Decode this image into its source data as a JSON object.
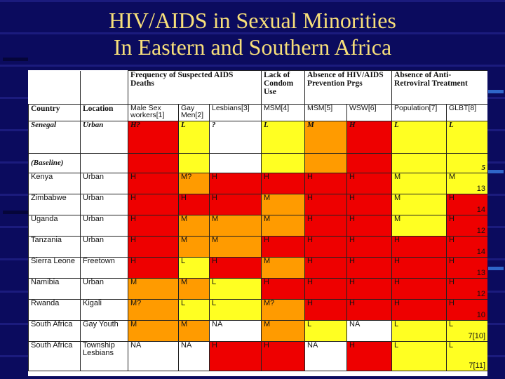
{
  "title": {
    "line1": "HIV/AIDS in Sexual Minorities",
    "line2": "In Eastern and Southern Africa"
  },
  "colors": {
    "background": "#0b0b5e",
    "title": "#f7df7a",
    "high": "#ee0000",
    "medium": "#ff9b00",
    "low": "#ffff22"
  },
  "table": {
    "groups": [
      "Frequency of Suspected AIDS Deaths",
      "Lack of Condom Use",
      "Absence of HIV/AIDS Prevention Prgs",
      "Absence of Anti-Retroviral Treatment"
    ],
    "columns": [
      "Country",
      "Location",
      "Male Sex workers[1]",
      "Gay Men[2]",
      "Lesbians[3]",
      "MSM[4]",
      "MSM[5]",
      "WSW[6]",
      "Population[7]",
      "GLBT[8]"
    ],
    "rows": [
      {
        "country": "Senegal",
        "location": "Urban",
        "cells": [
          "H?",
          "L",
          "?",
          "L",
          "M",
          "H",
          "L",
          "L"
        ],
        "colors": [
          "R",
          "Y",
          "W",
          "Y",
          "O",
          "R",
          "Y",
          "Y"
        ],
        "note": "",
        "style": "bi"
      },
      {
        "country": "(Baseline)",
        "location": "",
        "cells": [
          "",
          "",
          "",
          "",
          "",
          "",
          "",
          ""
        ],
        "colors": [
          "R",
          "Y",
          "W",
          "Y",
          "O",
          "R",
          "Y",
          "Y"
        ],
        "note": "5",
        "style": "bi"
      },
      {
        "country": "Kenya",
        "location": "Urban",
        "cells": [
          "H",
          "M?",
          "H",
          "H",
          "H",
          "H",
          "M",
          "M"
        ],
        "colors": [
          "R",
          "O",
          "R",
          "R",
          "R",
          "R",
          "Y",
          "Y"
        ],
        "note": "13",
        "style": ""
      },
      {
        "country": "Zimbabwe",
        "location": "Urban",
        "cells": [
          "H",
          "H",
          "H",
          "M",
          "H",
          "H",
          "M",
          "H"
        ],
        "colors": [
          "R",
          "R",
          "R",
          "O",
          "R",
          "R",
          "Y",
          "R"
        ],
        "note": "14",
        "style": ""
      },
      {
        "country": "Uganda",
        "location": "Urban",
        "cells": [
          "H",
          "M",
          "M",
          "M",
          "H",
          "H",
          "M",
          "H"
        ],
        "colors": [
          "R",
          "O",
          "O",
          "O",
          "R",
          "R",
          "Y",
          "R"
        ],
        "note": "12",
        "style": ""
      },
      {
        "country": "Tanzania",
        "location": "Urban",
        "cells": [
          "H",
          "M",
          "M",
          "H",
          "H",
          "H",
          "H",
          "H"
        ],
        "colors": [
          "R",
          "O",
          "O",
          "R",
          "R",
          "R",
          "R",
          "R"
        ],
        "note": "14",
        "style": ""
      },
      {
        "country": "Sierra Leone",
        "location": "Freetown",
        "cells": [
          "H",
          "L",
          "H",
          "M",
          "H",
          "H",
          "H",
          "H"
        ],
        "colors": [
          "R",
          "Y",
          "R",
          "O",
          "R",
          "R",
          "R",
          "R"
        ],
        "note": "13",
        "style": ""
      },
      {
        "country": "Namibia",
        "location": "Urban",
        "cells": [
          "M",
          "M",
          "L",
          "H",
          "H",
          "H",
          "H",
          "H"
        ],
        "colors": [
          "O",
          "O",
          "Y",
          "R",
          "R",
          "R",
          "R",
          "R"
        ],
        "note": "12",
        "style": ""
      },
      {
        "country": "Rwanda",
        "location": "Kigali",
        "cells": [
          "M?",
          "L",
          "L",
          "M?",
          "H",
          "H",
          "H",
          "H"
        ],
        "colors": [
          "O",
          "Y",
          "Y",
          "O",
          "R",
          "R",
          "R",
          "R"
        ],
        "note": "10",
        "style": ""
      },
      {
        "country": "South Africa",
        "location": "Gay Youth",
        "cells": [
          "M",
          "M",
          "NA",
          "M",
          "L",
          "NA",
          "L",
          "L"
        ],
        "colors": [
          "O",
          "O",
          "W",
          "O",
          "Y",
          "W",
          "Y",
          "Y"
        ],
        "note": "7[10]",
        "style": ""
      },
      {
        "country": "South Africa",
        "location": "Township Lesbians",
        "cells": [
          "NA",
          "NA",
          "H",
          "H",
          "NA",
          "H",
          "L",
          "L"
        ],
        "colors": [
          "W",
          "W",
          "R",
          "R",
          "W",
          "R",
          "Y",
          "Y"
        ],
        "note": "7[11]",
        "style": ""
      }
    ]
  }
}
